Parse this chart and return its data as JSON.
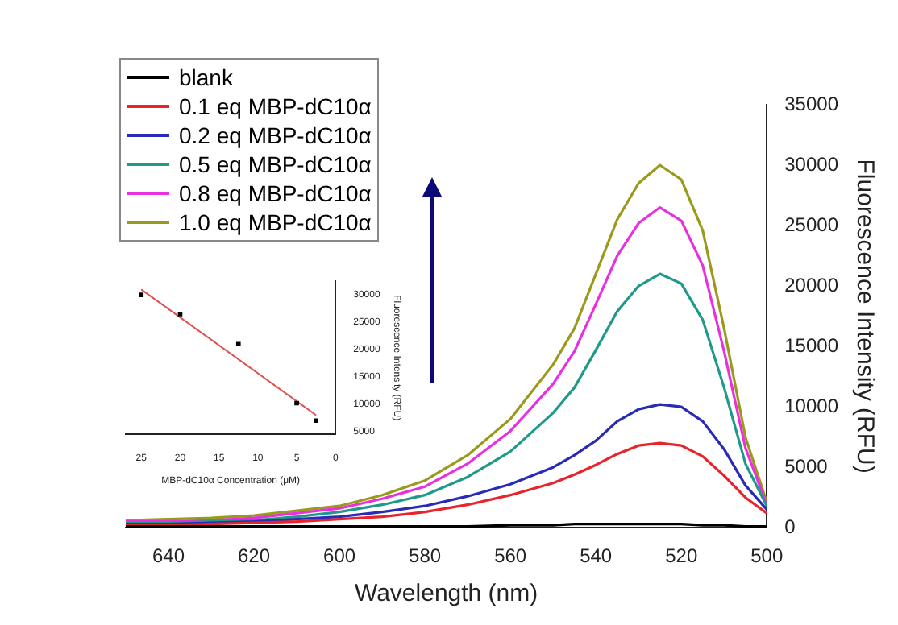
{
  "chart_data": [
    {
      "type": "line",
      "xlabel": "Wavelength (nm)",
      "ylabel": "Fluorescence Intensity (RFU)",
      "legend": "top left",
      "x": [
        500,
        505,
        510,
        515,
        520,
        525,
        530,
        535,
        540,
        545,
        550,
        560,
        570,
        580,
        590,
        600,
        610,
        620,
        630,
        640,
        650
      ],
      "xlim": [
        650,
        500
      ],
      "xticks": [
        640,
        620,
        600,
        580,
        560,
        540,
        520,
        500
      ],
      "ylim": [
        0,
        35000
      ],
      "yticks": [
        0,
        5000,
        10000,
        15000,
        20000,
        25000,
        30000,
        35000
      ],
      "series": [
        {
          "name": "blank",
          "color": "#000000",
          "values": [
            100,
            100,
            200,
            200,
            300,
            300,
            300,
            300,
            300,
            300,
            200,
            200,
            100,
            100,
            100,
            100,
            100,
            100,
            100,
            100,
            100
          ]
        },
        {
          "name": "0.1 eq MBP-dC10α",
          "color": "#e8232a",
          "values": [
            1200,
            2500,
            4300,
            5900,
            6800,
            7000,
            6800,
            6100,
            5200,
            4400,
            3700,
            2700,
            1900,
            1300,
            900,
            700,
            500,
            400,
            300,
            200,
            200
          ]
        },
        {
          "name": "0.2 eq MBP-dC10α",
          "color": "#2a2ab8",
          "values": [
            1500,
            3500,
            6500,
            8800,
            10000,
            10200,
            9800,
            8800,
            7200,
            6000,
            5000,
            3600,
            2600,
            1800,
            1300,
            900,
            700,
            500,
            400,
            300,
            300
          ]
        },
        {
          "name": "0.5 eq MBP-dC10α",
          "color": "#1f9a8a",
          "values": [
            1800,
            5300,
            11600,
            17200,
            20200,
            21000,
            20000,
            17900,
            14700,
            11600,
            9500,
            6300,
            4200,
            2700,
            1900,
            1300,
            900,
            600,
            500,
            400,
            400
          ]
        },
        {
          "name": "0.8 eq MBP-dC10α",
          "color": "#e830e0",
          "values": [
            1900,
            6600,
            14600,
            21700,
            25400,
            26500,
            25200,
            22500,
            18500,
            14600,
            11900,
            8000,
            5300,
            3400,
            2400,
            1600,
            1200,
            800,
            600,
            500,
            500
          ]
        },
        {
          "name": "1.0 eq MBP-dC10α",
          "color": "#9a9a1a",
          "values": [
            2100,
            7500,
            16500,
            24600,
            28800,
            30000,
            28500,
            25500,
            21000,
            16500,
            13500,
            9000,
            6000,
            3900,
            2700,
            1800,
            1400,
            1000,
            800,
            700,
            600
          ]
        }
      ]
    },
    {
      "type": "scatter",
      "xlabel": "MBP-dC10α Concentration (μM)",
      "ylabel": "Fluorescence Intensity (RFU)",
      "marker": "square",
      "xlim": [
        27,
        0
      ],
      "xticks": [
        25,
        20,
        15,
        10,
        5,
        0
      ],
      "ylim": [
        4500,
        32500
      ],
      "yticks": [
        5000,
        10000,
        15000,
        20000,
        25000,
        30000
      ],
      "series": [
        {
          "color": "#000000",
          "x": [
            25,
            20,
            12.5,
            5,
            2.5
          ],
          "values": [
            30000,
            26500,
            21000,
            10200,
            7000
          ]
        },
        {
          "type": "line",
          "marker": "none",
          "color": "#e05050",
          "x": [
            25,
            2.5
          ],
          "values": [
            31000,
            8000
          ]
        }
      ]
    }
  ]
}
